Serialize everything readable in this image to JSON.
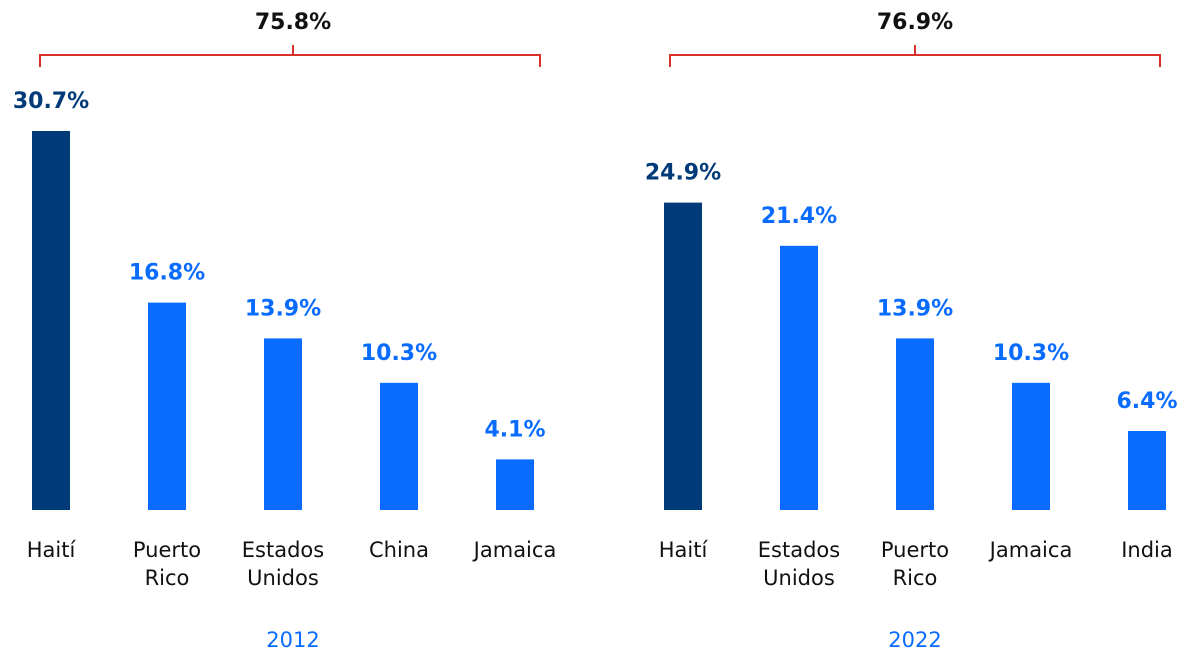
{
  "chart_data": [
    {
      "type": "bar",
      "title": "2012",
      "total_label": "75.8%",
      "categories": [
        "Haití",
        "Puerto Rico",
        "Estados Unidos",
        "China",
        "Jamaica"
      ],
      "values": [
        30.7,
        16.8,
        13.9,
        10.3,
        4.1
      ],
      "value_labels": [
        "30.7%",
        "16.8%",
        "13.9%",
        "10.3%",
        "4.1%"
      ],
      "colors": [
        "#003a78",
        "#0a6cff",
        "#0a6cff",
        "#0a6cff",
        "#0a6cff"
      ],
      "bracket_color": "#d9302c"
    },
    {
      "type": "bar",
      "title": "2022",
      "total_label": "76.9%",
      "categories": [
        "Haití",
        "Estados Unidos",
        "Puerto Rico",
        "Jamaica",
        "India"
      ],
      "values": [
        24.9,
        21.4,
        13.9,
        10.3,
        6.4
      ],
      "value_labels": [
        "24.9%",
        "21.4%",
        "13.9%",
        "10.3%",
        "6.4%"
      ],
      "colors": [
        "#003a78",
        "#0a6cff",
        "#0a6cff",
        "#0a6cff",
        "#0a6cff"
      ],
      "bracket_color": "#d9302c"
    }
  ]
}
